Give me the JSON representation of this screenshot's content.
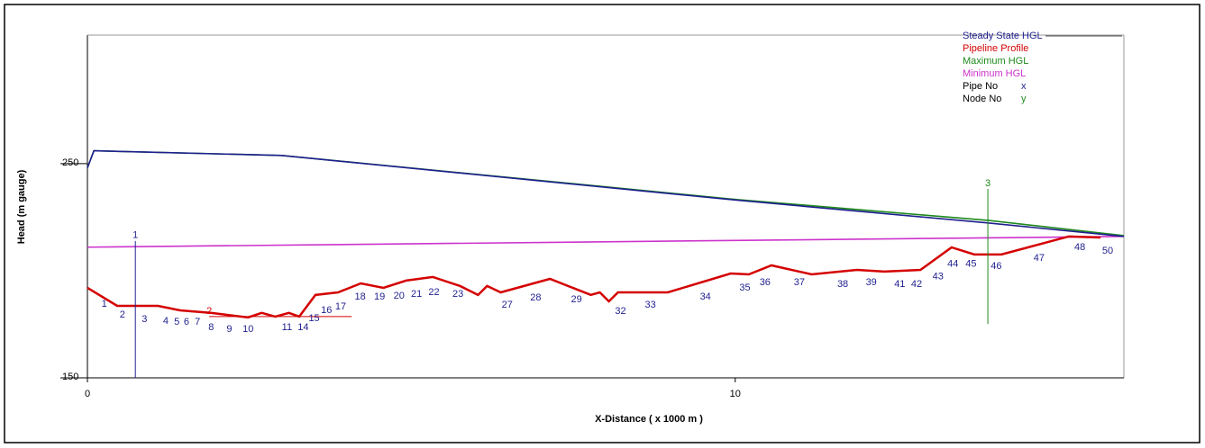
{
  "chart_data": {
    "type": "line",
    "x_label": "X-Distance ( x 1000 m )",
    "y_label": "Head (m gauge)",
    "xlim": [
      0,
      16
    ],
    "ylim": [
      150,
      310
    ],
    "xticks": [
      0,
      10
    ],
    "yticks": [
      150,
      250
    ],
    "legend": "top-right",
    "series": [
      {
        "name": "Steady State HGL",
        "color": "#1f1f8f",
        "x": [
          0,
          0.1,
          3,
          10,
          13.9,
          16
        ],
        "values": [
          248,
          256,
          253.8,
          233,
          222.3,
          216
        ]
      },
      {
        "name": "Pipeline Profile",
        "color": "#d40000",
        "x": [
          0,
          0.46,
          1.09,
          1.43,
          1.92,
          2.48,
          2.69,
          2.9,
          3.11,
          3.27,
          3.52,
          3.87,
          4.22,
          4.57,
          4.92,
          5.33,
          5.75,
          6.03,
          6.17,
          6.38,
          7.14,
          7.77,
          7.91,
          8.05,
          8.19,
          8.96,
          9.93,
          10.21,
          10.56,
          11.18,
          11.88,
          12.3,
          12.86,
          13.34,
          13.69,
          14.11,
          15.15,
          15.64
        ],
        "values": [
          192,
          183.6,
          183.6,
          181.5,
          180.3,
          178.2,
          180.3,
          178.6,
          180.3,
          178.6,
          188.7,
          189.9,
          194.1,
          192,
          195.4,
          197.1,
          192.9,
          188.7,
          192.9,
          189.9,
          196.2,
          188.7,
          189.9,
          185.7,
          189.9,
          189.9,
          198.7,
          198.3,
          202.5,
          198.3,
          200.4,
          199.6,
          200.4,
          210.9,
          207.6,
          207.6,
          216,
          215.5
        ]
      },
      {
        "name": "Maximum HGL",
        "color": "#1d8a1d",
        "x": [
          0,
          0.1,
          3,
          10,
          13.9,
          16
        ],
        "values": [
          248,
          256,
          253.8,
          233.3,
          223.5,
          216.4
        ]
      },
      {
        "name": "Minimum HGL",
        "color": "#cc33cc",
        "x": [
          0,
          16
        ],
        "values": [
          211,
          216
        ]
      }
    ],
    "legend_extra": [
      {
        "name": "Pipe No",
        "symbol": "x",
        "symbol_color": "#1f1f8f"
      },
      {
        "name": "Node No",
        "symbol": "y",
        "symbol_color": "#1d8a1d"
      }
    ],
    "node_labels": [
      {
        "label": "1",
        "x": 0.26,
        "y": 184.5
      },
      {
        "label": "2",
        "x": 0.54,
        "y": 179.4
      },
      {
        "label": "3",
        "x": 0.88,
        "y": 177.3
      },
      {
        "label": "4",
        "x": 1.21,
        "y": 176.5
      },
      {
        "label": "5",
        "x": 1.38,
        "y": 176.1
      },
      {
        "label": "6",
        "x": 1.53,
        "y": 176.1
      },
      {
        "label": "7",
        "x": 1.7,
        "y": 176.1
      },
      {
        "label": "8",
        "x": 1.91,
        "y": 173.5
      },
      {
        "label": "9",
        "x": 2.19,
        "y": 172.7
      },
      {
        "label": "10",
        "x": 2.48,
        "y": 172.7
      },
      {
        "label": "11",
        "x": 3.08,
        "y": 173.5
      },
      {
        "label": "14",
        "x": 3.33,
        "y": 173.5
      },
      {
        "label": "15",
        "x": 3.5,
        "y": 177.7
      },
      {
        "label": "16",
        "x": 3.69,
        "y": 181.5
      },
      {
        "label": "17",
        "x": 3.91,
        "y": 183.2
      },
      {
        "label": "18",
        "x": 4.21,
        "y": 187.8
      },
      {
        "label": "19",
        "x": 4.51,
        "y": 187.8
      },
      {
        "label": "20",
        "x": 4.81,
        "y": 188.2
      },
      {
        "label": "21",
        "x": 5.08,
        "y": 189.1
      },
      {
        "label": "22",
        "x": 5.35,
        "y": 189.9
      },
      {
        "label": "23",
        "x": 5.72,
        "y": 189.1
      },
      {
        "label": "27",
        "x": 6.48,
        "y": 184
      },
      {
        "label": "28",
        "x": 6.92,
        "y": 187.4
      },
      {
        "label": "29",
        "x": 7.55,
        "y": 186.6
      },
      {
        "label": "32",
        "x": 8.23,
        "y": 181.1
      },
      {
        "label": "33",
        "x": 8.69,
        "y": 184
      },
      {
        "label": "34",
        "x": 9.54,
        "y": 187.8
      },
      {
        "label": "35",
        "x": 10.15,
        "y": 192
      },
      {
        "label": "36",
        "x": 10.46,
        "y": 194.5
      },
      {
        "label": "37",
        "x": 10.99,
        "y": 194.5
      },
      {
        "label": "38",
        "x": 11.66,
        "y": 193.7
      },
      {
        "label": "39",
        "x": 12.1,
        "y": 194.5
      },
      {
        "label": "41",
        "x": 12.54,
        "y": 193.7
      },
      {
        "label": "42",
        "x": 12.8,
        "y": 193.7
      },
      {
        "label": "43",
        "x": 13.13,
        "y": 197.1
      },
      {
        "label": "44",
        "x": 13.36,
        "y": 203
      },
      {
        "label": "45",
        "x": 13.64,
        "y": 203
      },
      {
        "label": "46",
        "x": 14.03,
        "y": 202.1
      },
      {
        "label": "47",
        "x": 14.69,
        "y": 205.9
      },
      {
        "label": "48",
        "x": 15.32,
        "y": 210.9
      },
      {
        "label": "50",
        "x": 15.75,
        "y": 209.2
      }
    ],
    "markers": [
      {
        "label": "1",
        "color": "#1f1f8f",
        "x": [
          0.74,
          0.74
        ],
        "y": [
          213.9,
          150
        ]
      },
      {
        "label": "2",
        "color": "#d40000",
        "x": [
          1.88,
          4.08
        ],
        "y": [
          178.6,
          178.6
        ]
      },
      {
        "label": "3",
        "color": "#1d8a1d",
        "x": [
          13.9,
          13.9
        ],
        "y": [
          238.2,
          175.2
        ]
      }
    ]
  }
}
